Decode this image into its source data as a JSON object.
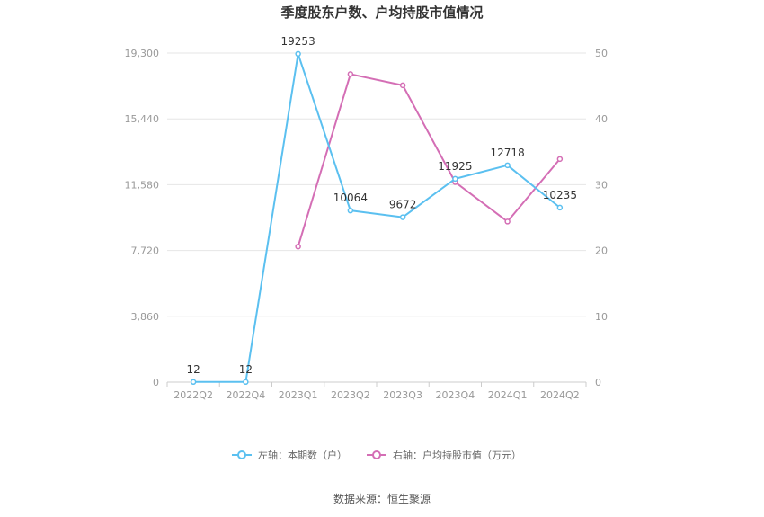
{
  "chart_data": {
    "type": "line",
    "title": "季度股东户数、户均持股市值情况",
    "categories": [
      "2022Q2",
      "2022Q4",
      "2023Q1",
      "2023Q2",
      "2023Q3",
      "2023Q4",
      "2024Q1",
      "2024Q2"
    ],
    "y_left": {
      "ticks": [
        "0",
        "3,860",
        "7,720",
        "11,580",
        "15,440",
        "19,300"
      ],
      "ylim": [
        0,
        19300
      ]
    },
    "y_right": {
      "ticks": [
        "0",
        "10",
        "20",
        "30",
        "40",
        "50"
      ],
      "ylim": [
        0,
        50
      ]
    },
    "series": [
      {
        "name": "左轴：本期数（户）",
        "axis": "left",
        "color": "#5bc0f0",
        "values": [
          12,
          12,
          19253,
          10064,
          9672,
          11925,
          12718,
          10235
        ],
        "labels": [
          "12",
          "12",
          "19253",
          "10064",
          "9672",
          "11925",
          "12718",
          "10235"
        ]
      },
      {
        "name": "右轴：户均持股市值（万元）",
        "axis": "right",
        "color": "#d46eb5",
        "values": [
          null,
          null,
          20.6,
          46.8,
          45.1,
          30.4,
          24.4,
          33.9
        ]
      }
    ],
    "grid": true,
    "legend_position": "bottom-center",
    "source": "数据来源：恒生聚源"
  }
}
